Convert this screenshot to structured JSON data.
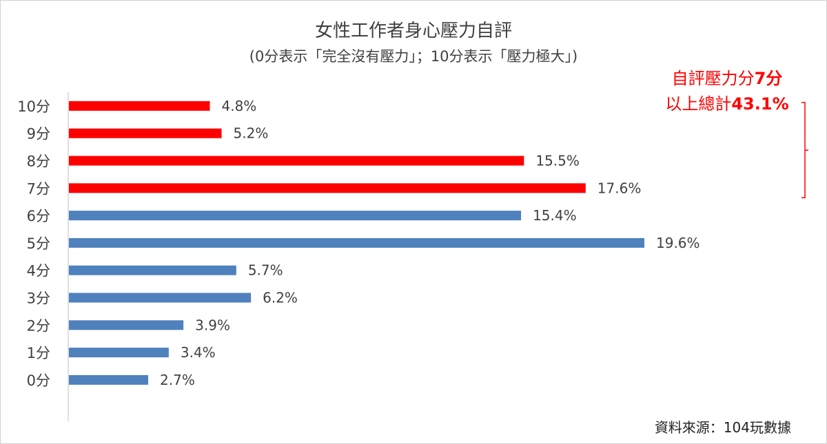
{
  "chart_data": {
    "type": "bar",
    "orientation": "horizontal",
    "title": "女性工作者身心壓力自評",
    "subtitle": "(0分表示「完全沒有壓力」；10分表示「壓力極大」)",
    "categories": [
      "10分",
      "9分",
      "8分",
      "7分",
      "6分",
      "5分",
      "4分",
      "3分",
      "2分",
      "1分",
      "0分"
    ],
    "values": [
      4.8,
      5.2,
      15.5,
      17.6,
      15.4,
      19.6,
      5.7,
      6.2,
      3.9,
      3.4,
      2.7
    ],
    "value_labels": [
      "4.8%",
      "5.2%",
      "15.5%",
      "17.6%",
      "15.4%",
      "19.6%",
      "5.7%",
      "6.2%",
      "3.9%",
      "3.4%",
      "2.7%"
    ],
    "bar_colors": [
      "#ff0000",
      "#ff0000",
      "#ff0000",
      "#ff0000",
      "#4f81bd",
      "#4f81bd",
      "#4f81bd",
      "#4f81bd",
      "#4f81bd",
      "#4f81bd",
      "#4f81bd"
    ],
    "xlim": [
      0,
      20
    ],
    "grid": false,
    "annotation": {
      "line1_text": "自評壓力分",
      "line1_bold": "7分",
      "line2_text": "以上總計",
      "line2_bold": "43.1%",
      "color": "#ff0000",
      "bracket_categories": [
        "10分",
        "7分"
      ]
    },
    "source": "資料來源：104玩數據"
  }
}
